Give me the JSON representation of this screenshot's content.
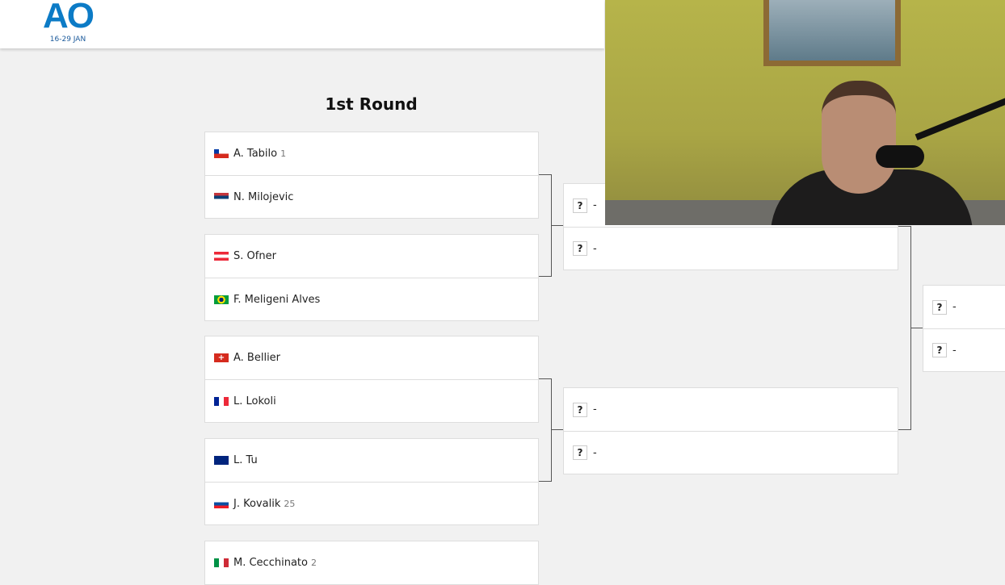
{
  "header": {
    "logo": "AO",
    "dates": "16-29 JAN"
  },
  "round_title": "1st Round",
  "round1": [
    {
      "players": [
        {
          "name": "A. Tabilo",
          "seed": "1",
          "flag": "chile"
        },
        {
          "name": "N. Milojevic",
          "seed": "",
          "flag": "serbia"
        }
      ]
    },
    {
      "players": [
        {
          "name": "S. Ofner",
          "seed": "",
          "flag": "austria"
        },
        {
          "name": "F. Meligeni Alves",
          "seed": "",
          "flag": "brazil"
        }
      ]
    },
    {
      "players": [
        {
          "name": "A. Bellier",
          "seed": "",
          "flag": "switzerland"
        },
        {
          "name": "L. Lokoli",
          "seed": "",
          "flag": "france"
        }
      ]
    },
    {
      "players": [
        {
          "name": "L. Tu",
          "seed": "",
          "flag": "australia"
        },
        {
          "name": "J. Kovalik",
          "seed": "25",
          "flag": "slovakia"
        }
      ]
    },
    {
      "players": [
        {
          "name": "M. Cecchinato",
          "seed": "2",
          "flag": "italy"
        }
      ]
    }
  ],
  "tbd": {
    "icon": "?",
    "name": "-"
  }
}
